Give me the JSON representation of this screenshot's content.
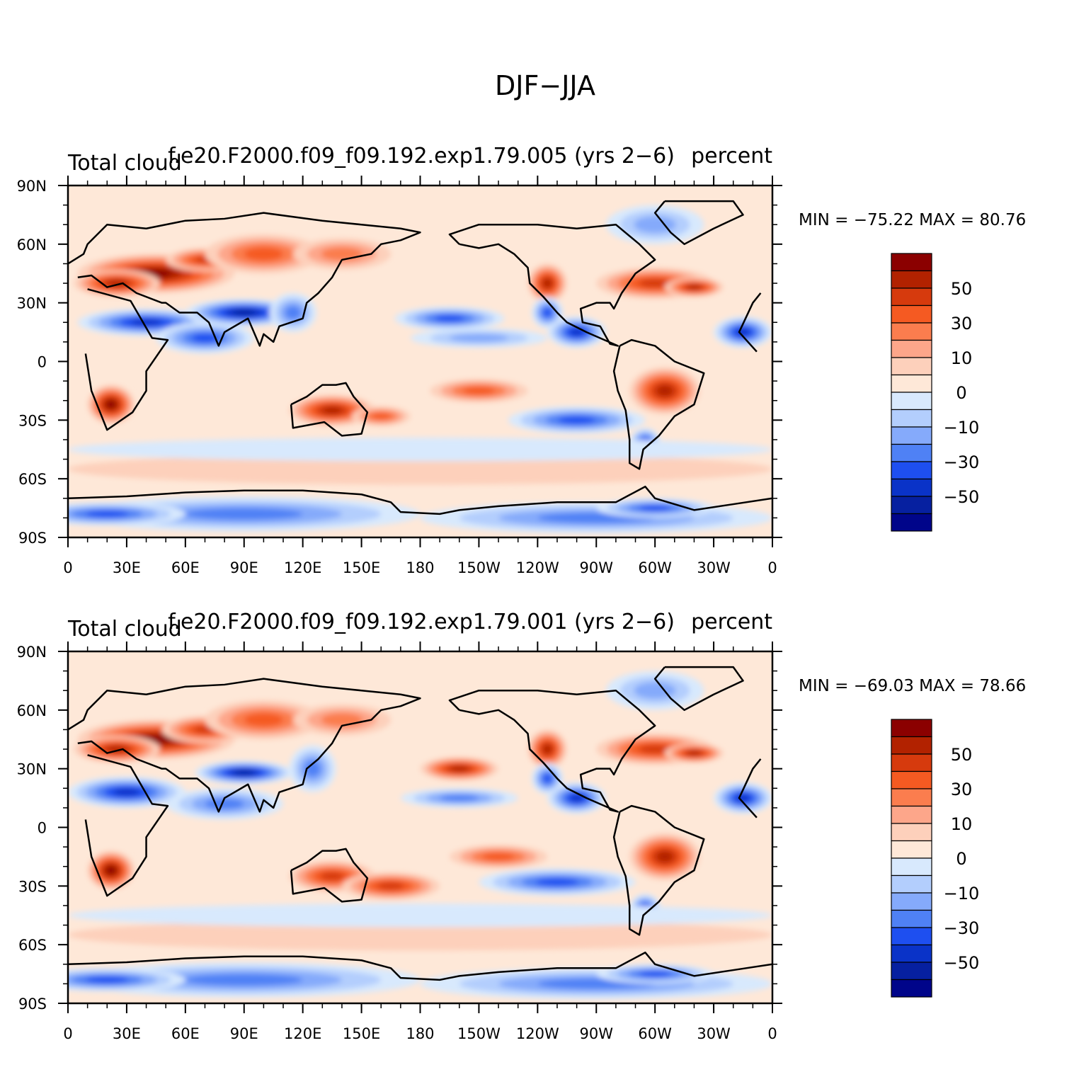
{
  "figure": {
    "title": "DJF−JJA"
  },
  "panels": [
    {
      "case_label": "f.e20.F2000.f09_f09.192.exp1.79.005 (yrs 2−6)",
      "variable_label": "Total cloud",
      "units_label": "percent",
      "min_max": "MIN = −75.22 MAX =   80.76"
    },
    {
      "case_label": "f.e20.F2000.f09_f09.192.exp1.79.001 (yrs 2−6)",
      "variable_label": "Total cloud",
      "units_label": "percent",
      "min_max": "MIN = −69.03 MAX =   78.66"
    }
  ],
  "axes": {
    "lon_ticks": [
      "0",
      "30E",
      "60E",
      "90E",
      "120E",
      "150E",
      "180",
      "150W",
      "120W",
      "90W",
      "60W",
      "30W",
      "0"
    ],
    "lat_ticks": [
      "90N",
      "60N",
      "30N",
      "0",
      "30S",
      "60S",
      "90S"
    ]
  },
  "colorbar": {
    "colors": [
      "#8b0000",
      "#b22200",
      "#d63a0d",
      "#f55a22",
      "#fb7d4e",
      "#fda68a",
      "#fdd0bb",
      "#fee8d8",
      "#d8e9fd",
      "#b3cefd",
      "#85aafb",
      "#4f81f5",
      "#1e4ff0",
      "#0a33c8",
      "#0620a0",
      "#00058a"
    ],
    "labels": [
      "50",
      "30",
      "10",
      "0",
      "−10",
      "−30",
      "−50"
    ]
  }
}
